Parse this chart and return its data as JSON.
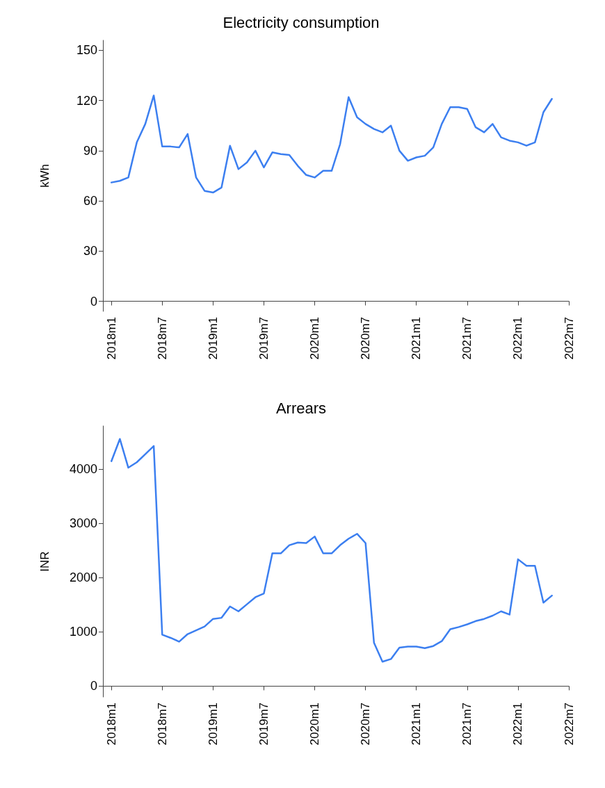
{
  "chart_data": [
    {
      "type": "line",
      "title": "Electricity consumption",
      "ylabel": "kWh",
      "grid": false,
      "marker": "none",
      "line_style": "solid",
      "x": [
        "2018-01",
        "2018-02",
        "2018-03",
        "2018-04",
        "2018-05",
        "2018-06",
        "2018-07",
        "2018-08",
        "2018-09",
        "2018-10",
        "2018-11",
        "2018-12",
        "2019-01",
        "2019-02",
        "2019-03",
        "2019-04",
        "2019-05",
        "2019-06",
        "2019-07",
        "2019-08",
        "2019-09",
        "2019-10",
        "2019-11",
        "2019-12",
        "2020-01",
        "2020-02",
        "2020-03",
        "2020-04",
        "2020-05",
        "2020-06",
        "2020-07",
        "2020-08",
        "2020-09",
        "2020-10",
        "2020-11",
        "2020-12",
        "2021-01",
        "2021-02",
        "2021-03",
        "2021-04",
        "2021-05",
        "2021-06",
        "2021-07",
        "2021-08",
        "2021-09",
        "2021-10",
        "2021-11",
        "2021-12",
        "2022-01",
        "2022-02",
        "2022-03",
        "2022-04",
        "2022-05"
      ],
      "series": [
        {
          "color": "#3c7ff0",
          "values": [
            71,
            72,
            74,
            95,
            106,
            123,
            92.5,
            92.5,
            92,
            100,
            74,
            66,
            65,
            68,
            93,
            79,
            83,
            90,
            80,
            89,
            88,
            87.5,
            81,
            75.5,
            74,
            78,
            78,
            94,
            122,
            110,
            106,
            103,
            101,
            105,
            90,
            84,
            86,
            87,
            92,
            106,
            116,
            116,
            115,
            104,
            101,
            106,
            98,
            96,
            95,
            93,
            95,
            113,
            121
          ]
        }
      ],
      "xlim": [
        "2017-12",
        "2022-07"
      ],
      "xticks": [
        {
          "value": "2018-01",
          "label": "2018m1"
        },
        {
          "value": "2018-07",
          "label": "2018m7"
        },
        {
          "value": "2019-01",
          "label": "2019m1"
        },
        {
          "value": "2019-07",
          "label": "2019m7"
        },
        {
          "value": "2020-01",
          "label": "2020m1"
        },
        {
          "value": "2020-07",
          "label": "2020m7"
        },
        {
          "value": "2021-01",
          "label": "2021m1"
        },
        {
          "value": "2021-07",
          "label": "2021m7"
        },
        {
          "value": "2022-01",
          "label": "2022m1"
        },
        {
          "value": "2022-07",
          "label": "2022m7"
        }
      ],
      "ylim": [
        -6,
        156
      ],
      "yticks": [
        0,
        30,
        60,
        90,
        120,
        150
      ]
    },
    {
      "type": "line",
      "title": "Arrears",
      "ylabel": "INR",
      "grid": false,
      "marker": "none",
      "line_style": "solid",
      "x": [
        "2018-01",
        "2018-02",
        "2018-03",
        "2018-04",
        "2018-05",
        "2018-06",
        "2018-07",
        "2018-08",
        "2018-09",
        "2018-10",
        "2018-11",
        "2018-12",
        "2019-01",
        "2019-02",
        "2019-03",
        "2019-04",
        "2019-05",
        "2019-06",
        "2019-07",
        "2019-08",
        "2019-09",
        "2019-10",
        "2019-11",
        "2019-12",
        "2020-01",
        "2020-02",
        "2020-03",
        "2020-04",
        "2020-05",
        "2020-06",
        "2020-07",
        "2020-08",
        "2020-09",
        "2020-10",
        "2020-11",
        "2020-12",
        "2021-01",
        "2021-02",
        "2021-03",
        "2021-04",
        "2021-05",
        "2021-06",
        "2021-07",
        "2021-08",
        "2021-09",
        "2021-10",
        "2021-11",
        "2021-12",
        "2022-01",
        "2022-02",
        "2022-03",
        "2022-04",
        "2022-05"
      ],
      "series": [
        {
          "color": "#3c7ff0",
          "values": [
            4150,
            4560,
            4030,
            4130,
            4280,
            4430,
            950,
            890,
            820,
            960,
            1030,
            1100,
            1240,
            1260,
            1470,
            1380,
            1510,
            1640,
            1710,
            2450,
            2450,
            2600,
            2650,
            2640,
            2760,
            2450,
            2450,
            2600,
            2720,
            2810,
            2640,
            800,
            450,
            500,
            710,
            730,
            730,
            700,
            740,
            830,
            1050,
            1090,
            1140,
            1200,
            1240,
            1300,
            1380,
            1320,
            2340,
            2220,
            2220,
            1540,
            1670
          ]
        }
      ],
      "xlim": [
        "2017-12",
        "2022-07"
      ],
      "xticks": [
        {
          "value": "2018-01",
          "label": "2018m1"
        },
        {
          "value": "2018-07",
          "label": "2018m7"
        },
        {
          "value": "2019-01",
          "label": "2019m1"
        },
        {
          "value": "2019-07",
          "label": "2019m7"
        },
        {
          "value": "2020-01",
          "label": "2020m1"
        },
        {
          "value": "2020-07",
          "label": "2020m7"
        },
        {
          "value": "2021-01",
          "label": "2021m1"
        },
        {
          "value": "2021-07",
          "label": "2021m7"
        },
        {
          "value": "2022-01",
          "label": "2022m1"
        },
        {
          "value": "2022-07",
          "label": "2022m7"
        }
      ],
      "ylim": [
        -200,
        4800
      ],
      "yticks": [
        0,
        1000,
        2000,
        3000,
        4000
      ]
    }
  ]
}
